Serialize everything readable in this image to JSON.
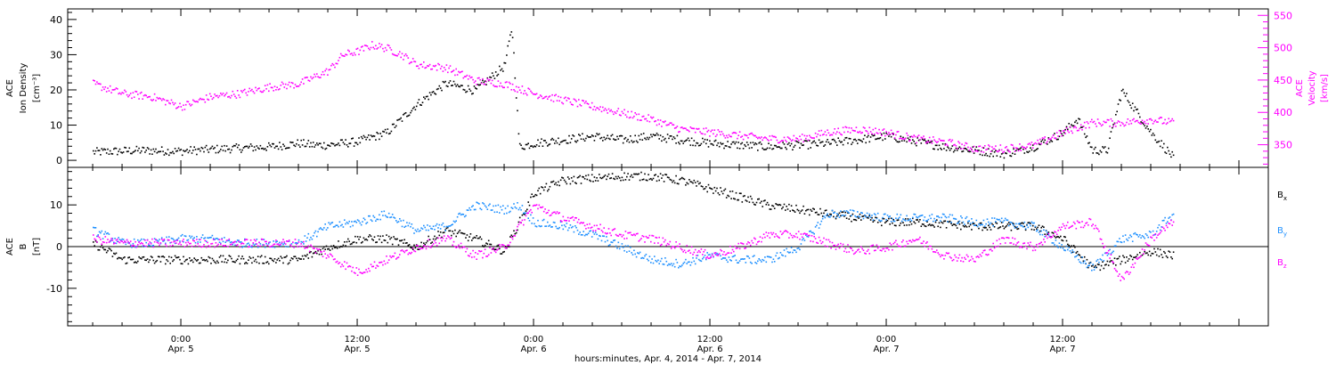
{
  "chart_data": [
    {
      "type": "scatter",
      "panel": "top",
      "ylabel_lines": [
        "ACE",
        "Ion Density",
        "[cm⁻³]"
      ],
      "y2label_lines": [
        "ACE",
        "Velocity",
        "[km/s]"
      ],
      "ylim": [
        -2,
        43
      ],
      "y2lim": [
        315,
        560
      ],
      "yticks": [
        "0",
        "10",
        "20",
        "30",
        "40"
      ],
      "y2ticks": [
        "350",
        "400",
        "450",
        "500",
        "550"
      ],
      "colors": {
        "density": "#000000",
        "velocity": "#ff00ff"
      },
      "series": [
        {
          "axis": "left",
          "color_key": "density",
          "x": [
            -6,
            -3,
            0,
            3,
            6,
            8,
            9,
            10,
            12,
            14,
            15,
            16,
            18,
            20,
            22,
            22.5,
            23,
            24,
            26,
            28,
            30,
            32,
            34,
            36,
            38,
            40,
            42,
            44,
            46,
            48,
            50,
            52,
            54,
            56,
            58,
            60,
            61,
            62,
            63,
            64,
            66,
            67.5
          ],
          "y": [
            2.5,
            3,
            2.8,
            3.5,
            4,
            5,
            4.5,
            4.5,
            5.5,
            8,
            12,
            16,
            22,
            20,
            27,
            38,
            4,
            5,
            6,
            7,
            6,
            7,
            6,
            5,
            4.5,
            4,
            4.5,
            5,
            6,
            7,
            5.5,
            4,
            3,
            2,
            4,
            8,
            12,
            3,
            3,
            20,
            8,
            1
          ]
        },
        {
          "axis": "right",
          "color_key": "velocity",
          "x": [
            -6,
            -4,
            -2,
            0,
            2,
            4,
            6,
            8,
            10,
            11,
            12,
            13,
            14,
            15,
            16,
            18,
            20,
            22,
            24,
            26,
            28,
            30,
            32,
            34,
            36,
            38,
            40,
            42,
            44,
            46,
            48,
            50,
            52,
            54,
            56,
            58,
            60,
            62,
            64,
            66,
            67.5
          ],
          "y": [
            445,
            430,
            425,
            410,
            425,
            430,
            440,
            445,
            465,
            490,
            495,
            505,
            500,
            490,
            475,
            470,
            450,
            445,
            430,
            420,
            410,
            400,
            390,
            375,
            370,
            365,
            360,
            360,
            370,
            375,
            370,
            360,
            355,
            345,
            345,
            350,
            370,
            385,
            385,
            390,
            385
          ]
        }
      ]
    },
    {
      "type": "scatter",
      "panel": "bottom",
      "ylabel_lines": [
        "ACE",
        "B",
        "[nT]"
      ],
      "ylim": [
        -19,
        19
      ],
      "yticks": [
        "-10",
        "0",
        "10"
      ],
      "zero_line": true,
      "colors": {
        "Bx": "#000000",
        "By": "#1e90ff",
        "Bz": "#ff00ff"
      },
      "legend": [
        {
          "key": "Bx",
          "base": "B",
          "sub": "x"
        },
        {
          "key": "By",
          "base": "B",
          "sub": "y"
        },
        {
          "key": "Bz",
          "base": "B",
          "sub": "z"
        }
      ],
      "series": [
        {
          "color_key": "Bx",
          "x": [
            -6,
            -4,
            -2,
            0,
            2,
            4,
            6,
            8,
            10,
            12,
            14,
            16,
            18,
            20,
            22,
            24,
            26,
            28,
            30,
            32,
            34,
            36,
            38,
            40,
            42,
            44,
            46,
            48,
            50,
            52,
            54,
            56,
            58,
            60,
            62,
            64,
            66,
            67.5
          ],
          "y": [
            1,
            -3,
            -3,
            -3,
            -3,
            -3,
            -3,
            -3,
            0,
            2,
            2,
            0,
            4,
            2,
            -1,
            13,
            16,
            16.5,
            17,
            17,
            16,
            14,
            12,
            10,
            9,
            8,
            7,
            6,
            6,
            5.5,
            5,
            5,
            5,
            2,
            -5,
            -3,
            -1,
            -2
          ]
        },
        {
          "color_key": "By",
          "x": [
            -6,
            -4,
            -2,
            0,
            2,
            4,
            6,
            8,
            10,
            12,
            14,
            16,
            18,
            20,
            22,
            23,
            24,
            26,
            28,
            30,
            32,
            34,
            36,
            38,
            40,
            42,
            44,
            46,
            48,
            50,
            52,
            54,
            56,
            58,
            60,
            62,
            64,
            66,
            67.5
          ],
          "y": [
            4,
            1,
            1,
            2,
            2,
            1,
            1,
            1,
            5,
            6,
            8,
            4,
            5,
            10,
            9,
            10,
            6,
            5,
            3,
            0,
            -3,
            -4,
            -2,
            -3,
            -3,
            0,
            8,
            8,
            7,
            7,
            7,
            6,
            6,
            5,
            0,
            -5,
            2,
            3,
            8
          ]
        },
        {
          "color_key": "Bz",
          "x": [
            -6,
            -4,
            -2,
            0,
            2,
            4,
            6,
            8,
            10,
            12,
            14,
            16,
            18,
            20,
            22,
            24,
            26,
            28,
            30,
            32,
            34,
            36,
            38,
            40,
            42,
            44,
            46,
            48,
            50,
            52,
            54,
            56,
            58,
            60,
            62,
            64,
            66,
            67.5
          ],
          "y": [
            2,
            1,
            1,
            1,
            1,
            1,
            1,
            1,
            -2,
            -6,
            -3,
            0,
            2,
            -2,
            0,
            10,
            7,
            5,
            3,
            2,
            0,
            -2,
            0,
            3,
            3,
            1,
            -1,
            0,
            2,
            -2,
            -3,
            2,
            0,
            5,
            6,
            -8,
            2,
            6
          ]
        }
      ]
    }
  ],
  "x_axis": {
    "xlim": [
      -7.7,
      74
    ],
    "ticks": [
      {
        "x": 0,
        "time": "0:00",
        "date": "Apr. 5"
      },
      {
        "x": 12,
        "time": "12:00",
        "date": "Apr. 5"
      },
      {
        "x": 24,
        "time": "0:00",
        "date": "Apr. 6"
      },
      {
        "x": 36,
        "time": "12:00",
        "date": "Apr. 6"
      },
      {
        "x": 48,
        "time": "0:00",
        "date": "Apr. 7"
      },
      {
        "x": 60,
        "time": "12:00",
        "date": "Apr. 7"
      }
    ],
    "title": "hours:minutes, Apr.  4, 2014 - Apr.  7, 2014"
  }
}
